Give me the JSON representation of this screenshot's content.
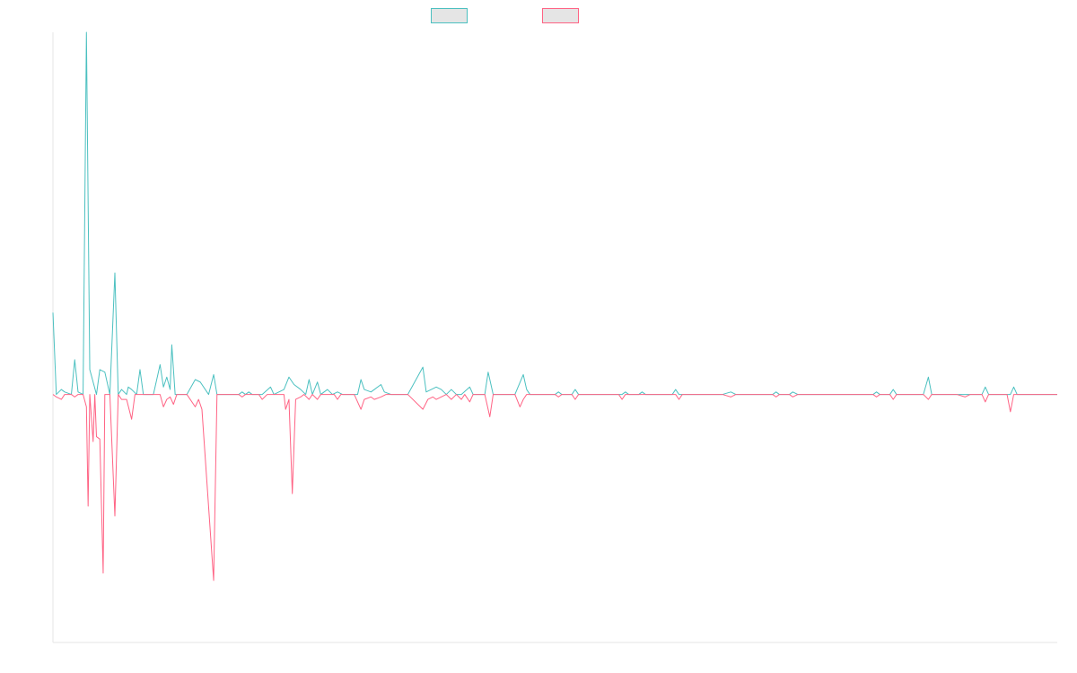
{
  "chart_data": {
    "type": "line",
    "title": "",
    "xlabel": "",
    "ylabel": "",
    "legend": "top-center",
    "grid": false,
    "x_range": [
      0,
      600
    ],
    "ylim": [
      -1.0,
      1.46
    ],
    "series": [
      {
        "color": "#4bc0c0",
        "fill": "#e5e5e5",
        "points": [
          [
            0,
            0.33
          ],
          [
            2,
            0
          ],
          [
            5,
            0.02
          ],
          [
            7,
            0.01
          ],
          [
            11,
            0
          ],
          [
            13,
            0.14
          ],
          [
            15,
            0.01
          ],
          [
            18,
            0
          ],
          [
            20,
            1.46
          ],
          [
            22,
            0.1
          ],
          [
            24,
            0.05
          ],
          [
            26,
            0
          ],
          [
            28,
            0.1
          ],
          [
            31,
            0.09
          ],
          [
            34,
            0
          ],
          [
            37,
            0.49
          ],
          [
            39,
            0
          ],
          [
            41,
            0.02
          ],
          [
            44,
            0
          ],
          [
            45,
            0.03
          ],
          [
            47,
            0.02
          ],
          [
            50,
            0
          ],
          [
            52,
            0.1
          ],
          [
            54,
            0
          ],
          [
            60,
            0
          ],
          [
            64,
            0.12
          ],
          [
            66,
            0.03
          ],
          [
            68,
            0.07
          ],
          [
            70,
            0.02
          ],
          [
            71,
            0.2
          ],
          [
            73,
            0
          ],
          [
            80,
            0
          ],
          [
            85,
            0.06
          ],
          [
            88,
            0.05
          ],
          [
            93,
            0
          ],
          [
            96,
            0.08
          ],
          [
            98,
            0
          ],
          [
            111,
            0
          ],
          [
            113,
            0.01
          ],
          [
            115,
            0
          ],
          [
            117,
            0.01
          ],
          [
            119,
            0
          ],
          [
            125,
            0
          ],
          [
            130,
            0.03
          ],
          [
            132,
            0
          ],
          [
            138,
            0.02
          ],
          [
            141,
            0.07
          ],
          [
            144,
            0.04
          ],
          [
            148,
            0.02
          ],
          [
            151,
            0
          ],
          [
            153,
            0.06
          ],
          [
            155,
            0
          ],
          [
            158,
            0.05
          ],
          [
            160,
            0
          ],
          [
            164,
            0.02
          ],
          [
            167,
            0
          ],
          [
            170,
            0.01
          ],
          [
            173,
            0
          ],
          [
            182,
            0
          ],
          [
            184,
            0.06
          ],
          [
            186,
            0.02
          ],
          [
            190,
            0.01
          ],
          [
            192,
            0.02
          ],
          [
            196,
            0.04
          ],
          [
            198,
            0.01
          ],
          [
            202,
            0
          ],
          [
            212,
            0
          ],
          [
            221,
            0.11
          ],
          [
            223,
            0.01
          ],
          [
            226,
            0.02
          ],
          [
            229,
            0.03
          ],
          [
            232,
            0.02
          ],
          [
            235,
            0
          ],
          [
            238,
            0.02
          ],
          [
            241,
            0
          ],
          [
            244,
            0
          ],
          [
            249,
            0.03
          ],
          [
            251,
            0
          ],
          [
            258,
            0
          ],
          [
            260,
            0.09
          ],
          [
            263,
            0
          ],
          [
            276,
            0
          ],
          [
            281,
            0.08
          ],
          [
            283,
            0.02
          ],
          [
            285,
            0
          ],
          [
            300,
            0
          ],
          [
            302,
            0.01
          ],
          [
            304,
            0
          ],
          [
            310,
            0
          ],
          [
            312,
            0.02
          ],
          [
            314,
            0
          ],
          [
            322,
            0
          ],
          [
            340,
            0
          ],
          [
            342,
            0.01
          ],
          [
            344,
            0
          ],
          [
            350,
            0
          ],
          [
            352,
            0.01
          ],
          [
            354,
            0
          ],
          [
            370,
            0
          ],
          [
            372,
            0.02
          ],
          [
            374,
            0
          ],
          [
            400,
            0
          ],
          [
            405,
            0.01
          ],
          [
            408,
            0
          ],
          [
            430,
            0
          ],
          [
            432,
            0.01
          ],
          [
            434,
            0
          ],
          [
            440,
            0
          ],
          [
            442,
            0.01
          ],
          [
            445,
            0
          ],
          [
            490,
            0
          ],
          [
            492,
            0.01
          ],
          [
            494,
            0
          ],
          [
            500,
            0
          ],
          [
            502,
            0.02
          ],
          [
            504,
            0
          ],
          [
            520,
            0
          ],
          [
            523,
            0.07
          ],
          [
            525,
            0
          ],
          [
            555,
            0
          ],
          [
            557,
            0.03
          ],
          [
            559,
            0
          ],
          [
            572,
            0
          ],
          [
            574,
            0.03
          ],
          [
            576,
            0
          ],
          [
            600,
            0
          ]
        ]
      },
      {
        "color": "#ff6384",
        "fill": "#e5e5e5",
        "points": [
          [
            0,
            0
          ],
          [
            2,
            -0.01
          ],
          [
            5,
            -0.02
          ],
          [
            7,
            0
          ],
          [
            11,
            0
          ],
          [
            13,
            -0.01
          ],
          [
            15,
            0
          ],
          [
            18,
            0
          ],
          [
            20,
            -0.05
          ],
          [
            21,
            -0.45
          ],
          [
            22,
            0
          ],
          [
            24,
            -0.19
          ],
          [
            25,
            0
          ],
          [
            26,
            -0.17
          ],
          [
            28,
            -0.18
          ],
          [
            30,
            -0.72
          ],
          [
            31,
            0
          ],
          [
            34,
            0
          ],
          [
            37,
            -0.49
          ],
          [
            39,
            0
          ],
          [
            41,
            -0.02
          ],
          [
            44,
            -0.02
          ],
          [
            47,
            -0.1
          ],
          [
            49,
            0
          ],
          [
            64,
            0
          ],
          [
            66,
            -0.05
          ],
          [
            68,
            -0.02
          ],
          [
            70,
            -0.01
          ],
          [
            72,
            -0.04
          ],
          [
            74,
            0
          ],
          [
            80,
            0
          ],
          [
            85,
            -0.05
          ],
          [
            87,
            -0.02
          ],
          [
            89,
            -0.06
          ],
          [
            96,
            -0.75
          ],
          [
            98,
            0
          ],
          [
            111,
            0
          ],
          [
            113,
            -0.01
          ],
          [
            115,
            0
          ],
          [
            123,
            0
          ],
          [
            125,
            -0.02
          ],
          [
            128,
            0
          ],
          [
            138,
            0
          ],
          [
            139,
            -0.06
          ],
          [
            141,
            -0.02
          ],
          [
            143,
            -0.4
          ],
          [
            145,
            -0.02
          ],
          [
            148,
            -0.01
          ],
          [
            150,
            0
          ],
          [
            153,
            -0.02
          ],
          [
            155,
            0
          ],
          [
            158,
            -0.02
          ],
          [
            160,
            0
          ],
          [
            168,
            0
          ],
          [
            170,
            -0.02
          ],
          [
            172,
            0
          ],
          [
            180,
            0
          ],
          [
            184,
            -0.06
          ],
          [
            186,
            -0.02
          ],
          [
            190,
            -0.01
          ],
          [
            192,
            -0.02
          ],
          [
            196,
            -0.01
          ],
          [
            199,
            0
          ],
          [
            212,
            0
          ],
          [
            221,
            -0.06
          ],
          [
            224,
            -0.02
          ],
          [
            227,
            -0.01
          ],
          [
            229,
            -0.02
          ],
          [
            232,
            -0.01
          ],
          [
            235,
            0
          ],
          [
            238,
            -0.02
          ],
          [
            241,
            0
          ],
          [
            244,
            -0.02
          ],
          [
            246,
            0
          ],
          [
            249,
            -0.03
          ],
          [
            251,
            0
          ],
          [
            258,
            0
          ],
          [
            261,
            -0.09
          ],
          [
            263,
            0
          ],
          [
            276,
            0
          ],
          [
            279,
            -0.05
          ],
          [
            281,
            -0.02
          ],
          [
            283,
            0
          ],
          [
            300,
            0
          ],
          [
            302,
            -0.01
          ],
          [
            304,
            0
          ],
          [
            310,
            0
          ],
          [
            312,
            -0.02
          ],
          [
            314,
            0
          ],
          [
            322,
            0
          ],
          [
            338,
            0
          ],
          [
            340,
            -0.02
          ],
          [
            342,
            0
          ],
          [
            372,
            0
          ],
          [
            374,
            -0.02
          ],
          [
            376,
            0
          ],
          [
            400,
            0
          ],
          [
            405,
            -0.01
          ],
          [
            408,
            0
          ],
          [
            430,
            0
          ],
          [
            432,
            -0.01
          ],
          [
            434,
            0
          ],
          [
            440,
            0
          ],
          [
            442,
            -0.01
          ],
          [
            445,
            0
          ],
          [
            490,
            0
          ],
          [
            492,
            -0.01
          ],
          [
            494,
            0
          ],
          [
            500,
            0
          ],
          [
            502,
            -0.02
          ],
          [
            504,
            0
          ],
          [
            520,
            0
          ],
          [
            523,
            -0.02
          ],
          [
            525,
            0
          ],
          [
            540,
            0
          ],
          [
            545,
            -0.01
          ],
          [
            548,
            0
          ],
          [
            555,
            0
          ],
          [
            557,
            -0.03
          ],
          [
            559,
            0
          ],
          [
            570,
            0
          ],
          [
            572,
            -0.07
          ],
          [
            574,
            0
          ],
          [
            600,
            0
          ]
        ]
      }
    ]
  }
}
